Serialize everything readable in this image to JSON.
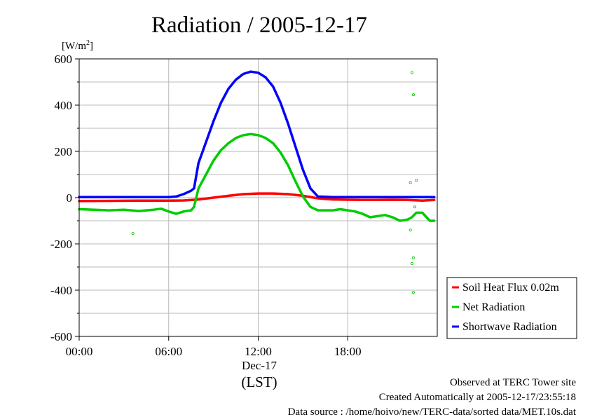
{
  "title": "Radiation / 2005-12-17",
  "unit_label": "[W/m",
  "unit_sup": "2",
  "unit_close": "]",
  "x_date_label": "Dec-17",
  "x_axis_label": "(LST)",
  "footer": {
    "line1": "Observed at TERC Tower site",
    "line2": "Created Automatically at 2005-12-17/23:55:18",
    "line3": "Data source : /home/hoivo/new/TERC-data/sorted  data/MET.10s.dat"
  },
  "chart_data": {
    "type": "line",
    "title": "Radiation / 2005-12-17",
    "ylabel": "[W/m2]",
    "xlabel": "(LST)",
    "xlim": [
      0,
      24
    ],
    "ylim": [
      -600,
      600
    ],
    "x_ticks": [
      {
        "value": 0,
        "label": "00:00"
      },
      {
        "value": 6,
        "label": "06:00"
      },
      {
        "value": 12,
        "label": "12:00"
      },
      {
        "value": 18,
        "label": "18:00"
      }
    ],
    "y_ticks": [
      {
        "value": 600,
        "label": "600"
      },
      {
        "value": 400,
        "label": "400"
      },
      {
        "value": 200,
        "label": "200"
      },
      {
        "value": 0,
        "label": "0"
      },
      {
        "value": -200,
        "label": "-200"
      },
      {
        "value": -400,
        "label": "-400"
      },
      {
        "value": -600,
        "label": "-600"
      }
    ],
    "grid": true,
    "legend_position": "right-bottom",
    "series": [
      {
        "name": "Soil Heat Flux 0.02m",
        "color": "#ff0000",
        "x": [
          0,
          2,
          4,
          6,
          7,
          8,
          9,
          10,
          11,
          12,
          13,
          14,
          15,
          16,
          17,
          18,
          19,
          20,
          21,
          22,
          23,
          23.8
        ],
        "y": [
          -15,
          -14,
          -13,
          -13,
          -12,
          -8,
          0,
          8,
          15,
          18,
          18,
          15,
          8,
          -3,
          -8,
          -9,
          -10,
          -10,
          -9,
          -10,
          -13,
          -10
        ]
      },
      {
        "name": "Net Radiation",
        "color": "#00cc00",
        "x": [
          0,
          1,
          2,
          3,
          4,
          5,
          5.5,
          6,
          6.5,
          7,
          7.5,
          7.7,
          8,
          8.5,
          9,
          9.5,
          10,
          10.5,
          11,
          11.5,
          12,
          12.5,
          13,
          13.5,
          14,
          14.5,
          15,
          15.5,
          16,
          17,
          17.5,
          18,
          18.5,
          19,
          19.5,
          20,
          20.5,
          21,
          21.5,
          22,
          22.3,
          22.6,
          23,
          23.5,
          23.8
        ],
        "y": [
          -50,
          -52,
          -55,
          -52,
          -58,
          -52,
          -48,
          -60,
          -70,
          -60,
          -55,
          -40,
          40,
          100,
          160,
          205,
          235,
          258,
          270,
          275,
          270,
          258,
          235,
          195,
          140,
          70,
          5,
          -40,
          -55,
          -55,
          -50,
          -55,
          -60,
          -70,
          -85,
          -80,
          -75,
          -85,
          -100,
          -95,
          -85,
          -65,
          -65,
          -100,
          -100
        ]
      },
      {
        "name": "Shortwave Radiation",
        "color": "#0000ff",
        "x": [
          0,
          2,
          4,
          6,
          6.5,
          7,
          7.5,
          7.7,
          8,
          8.5,
          9,
          9.5,
          10,
          10.5,
          11,
          11.5,
          12,
          12.5,
          13,
          13.5,
          14,
          14.5,
          15,
          15.5,
          16,
          17,
          18,
          19,
          20,
          21,
          22,
          23,
          23.8
        ],
        "y": [
          2,
          2,
          2,
          2,
          5,
          15,
          30,
          40,
          150,
          240,
          330,
          410,
          470,
          510,
          535,
          545,
          540,
          520,
          480,
          410,
          320,
          220,
          120,
          40,
          5,
          2,
          2,
          2,
          2,
          2,
          2,
          2,
          2
        ]
      }
    ],
    "outliers": {
      "series": "Net Radiation",
      "points": [
        [
          3.6,
          -155
        ],
        [
          22.3,
          540
        ],
        [
          22.4,
          445
        ],
        [
          22.2,
          65
        ],
        [
          22.6,
          75
        ],
        [
          22.5,
          -40
        ],
        [
          22.2,
          -140
        ],
        [
          22.4,
          -260
        ],
        [
          22.3,
          -285
        ],
        [
          22.4,
          -410
        ]
      ]
    }
  }
}
